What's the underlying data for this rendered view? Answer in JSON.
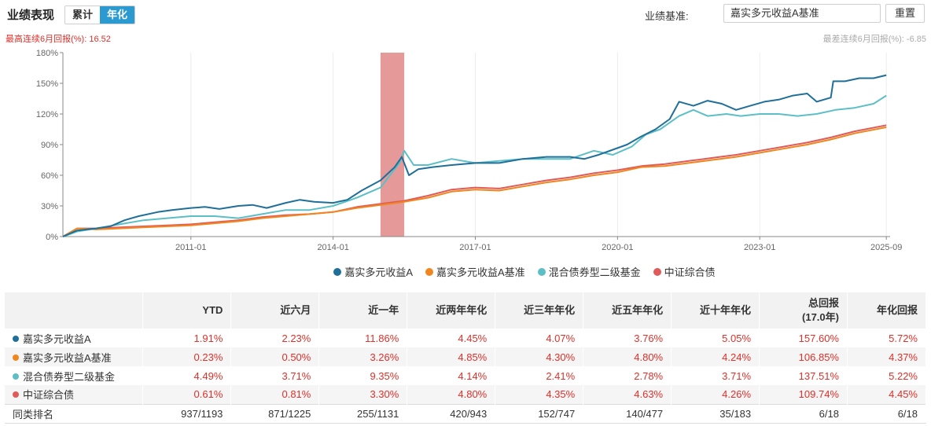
{
  "header": {
    "title": "业绩表现",
    "toggle_cumulative": "累计",
    "toggle_annualized": "年化",
    "benchmark_label": "业绩基准:",
    "benchmark_value": "嘉实多元收益A基准",
    "reset_label": "重置"
  },
  "notes": {
    "best": "最高连续6月回报(%): 16.52",
    "worst": "最差连续6月回报(%): -6.85"
  },
  "colors": {
    "fund": "#1f6f99",
    "benchmark": "#f0861d",
    "peer": "#5cbfc6",
    "bond_index": "#e05a5a",
    "highlight": "#e08080",
    "value_red": "#e0302a"
  },
  "chart_data": {
    "type": "line",
    "x_unit": "year",
    "xlim": [
      2008.3,
      2025.75
    ],
    "ylim": [
      0,
      180
    ],
    "yticks": [
      0,
      30,
      60,
      90,
      120,
      150,
      180
    ],
    "ytick_labels": [
      "0%",
      "30%",
      "60%",
      "90%",
      "120%",
      "150%",
      "180%"
    ],
    "xticks": [
      2011.0,
      2014.0,
      2017.0,
      2020.0,
      2023.0,
      2025.67
    ],
    "xtick_labels": [
      "2011-01",
      "2014-01",
      "2017-01",
      "2020-01",
      "2023-01",
      "2025-09"
    ],
    "highlight_range": [
      2015.0,
      2015.5
    ],
    "grid": "vertical",
    "series": [
      {
        "name": "嘉实多元收益A",
        "color": "#1f6f99",
        "x": [
          2008.3,
          2008.6,
          2009.0,
          2009.3,
          2009.6,
          2009.9,
          2010.3,
          2010.6,
          2011.0,
          2011.3,
          2011.6,
          2012.0,
          2012.3,
          2012.6,
          2013.0,
          2013.3,
          2013.6,
          2014.0,
          2014.3,
          2014.6,
          2015.0,
          2015.3,
          2015.45,
          2015.6,
          2015.8,
          2016.1,
          2016.5,
          2017.0,
          2017.5,
          2018.0,
          2018.5,
          2019.0,
          2019.3,
          2019.6,
          2019.9,
          2020.2,
          2020.5,
          2020.8,
          2021.1,
          2021.3,
          2021.6,
          2021.9,
          2022.2,
          2022.5,
          2022.8,
          2023.1,
          2023.4,
          2023.7,
          2024.0,
          2024.2,
          2024.5,
          2024.55,
          2024.8,
          2025.1,
          2025.4,
          2025.67
        ],
        "values": [
          0,
          6,
          8,
          10,
          16,
          20,
          24,
          26,
          28,
          29,
          27,
          30,
          31,
          28,
          33,
          36,
          34,
          33,
          36,
          45,
          55,
          68,
          78,
          60,
          66,
          68,
          70,
          72,
          72,
          76,
          78,
          78,
          76,
          80,
          85,
          90,
          98,
          105,
          115,
          132,
          128,
          133,
          130,
          124,
          128,
          132,
          134,
          138,
          140,
          132,
          136,
          152,
          152,
          155,
          155,
          158
        ]
      },
      {
        "name": "嘉实多元收益A基准",
        "color": "#f0861d",
        "x": [
          2008.3,
          2008.6,
          2009.0,
          2009.5,
          2010.0,
          2010.5,
          2011.0,
          2011.5,
          2012.0,
          2012.5,
          2013.0,
          2013.5,
          2014.0,
          2014.5,
          2015.0,
          2015.5,
          2016.0,
          2016.5,
          2017.0,
          2017.5,
          2018.0,
          2018.5,
          2019.0,
          2019.5,
          2020.0,
          2020.5,
          2021.0,
          2021.5,
          2022.0,
          2022.5,
          2023.0,
          2023.5,
          2024.0,
          2024.5,
          2025.0,
          2025.67
        ],
        "values": [
          0,
          8,
          7,
          8,
          9,
          10,
          11,
          13,
          15,
          18,
          20,
          22,
          24,
          28,
          31,
          34,
          38,
          44,
          46,
          45,
          49,
          53,
          56,
          60,
          63,
          68,
          69,
          72,
          75,
          78,
          82,
          86,
          90,
          95,
          101,
          107
        ]
      },
      {
        "name": "混合债券型二级基金",
        "color": "#5cbfc6",
        "x": [
          2008.3,
          2008.6,
          2009.0,
          2009.5,
          2010.0,
          2010.5,
          2011.0,
          2011.5,
          2012.0,
          2012.5,
          2013.0,
          2013.5,
          2014.0,
          2014.5,
          2015.0,
          2015.4,
          2015.5,
          2015.7,
          2016.0,
          2016.5,
          2017.0,
          2017.5,
          2018.0,
          2018.5,
          2019.0,
          2019.5,
          2019.9,
          2020.3,
          2020.6,
          2020.9,
          2021.3,
          2021.6,
          2021.9,
          2022.3,
          2022.6,
          2023.0,
          2023.4,
          2023.8,
          2024.2,
          2024.6,
          2025.0,
          2025.4,
          2025.67
        ],
        "values": [
          0,
          5,
          8,
          12,
          16,
          18,
          20,
          20,
          18,
          22,
          26,
          26,
          30,
          38,
          48,
          72,
          84,
          70,
          70,
          76,
          72,
          74,
          76,
          76,
          76,
          84,
          80,
          88,
          100,
          105,
          118,
          124,
          118,
          120,
          118,
          120,
          120,
          118,
          120,
          124,
          126,
          130,
          138
        ]
      },
      {
        "name": "中证综合债",
        "color": "#e05a5a",
        "x": [
          2008.3,
          2008.6,
          2009.0,
          2009.5,
          2010.0,
          2010.5,
          2011.0,
          2011.5,
          2012.0,
          2012.5,
          2013.0,
          2013.5,
          2014.0,
          2014.5,
          2015.0,
          2015.5,
          2016.0,
          2016.5,
          2017.0,
          2017.5,
          2018.0,
          2018.5,
          2019.0,
          2019.5,
          2020.0,
          2020.5,
          2021.0,
          2021.5,
          2022.0,
          2022.5,
          2023.0,
          2023.5,
          2024.0,
          2024.5,
          2025.0,
          2025.67
        ],
        "values": [
          0,
          8,
          8,
          9,
          10,
          11,
          12,
          14,
          16,
          19,
          21,
          22,
          24,
          29,
          32,
          35,
          40,
          46,
          48,
          47,
          51,
          55,
          58,
          62,
          65,
          69,
          71,
          74,
          77,
          80,
          84,
          88,
          92,
          97,
          103,
          109
        ]
      }
    ]
  },
  "table": {
    "headers": [
      "",
      "YTD",
      "近六月",
      "近一年",
      "近两年年化",
      "近三年年化",
      "近五年年化",
      "近十年年化",
      "总回报",
      "(17.0年)",
      "年化回报"
    ],
    "rows": [
      {
        "name": "嘉实多元收益A",
        "color": "#1f6f99",
        "values": [
          "1.91%",
          "2.23%",
          "11.86%",
          "4.45%",
          "4.07%",
          "3.76%",
          "5.05%",
          "157.60%",
          "5.72%"
        ]
      },
      {
        "name": "嘉实多元收益A基准",
        "color": "#f0861d",
        "values": [
          "0.23%",
          "0.50%",
          "3.26%",
          "4.85%",
          "4.30%",
          "4.80%",
          "4.24%",
          "106.85%",
          "4.37%"
        ]
      },
      {
        "name": "混合债券型二级基金",
        "color": "#5cbfc6",
        "values": [
          "4.49%",
          "3.71%",
          "9.35%",
          "4.14%",
          "2.41%",
          "2.78%",
          "3.71%",
          "137.51%",
          "5.22%"
        ]
      },
      {
        "name": "中证综合债",
        "color": "#e05a5a",
        "values": [
          "0.61%",
          "0.81%",
          "3.30%",
          "4.80%",
          "4.35%",
          "4.63%",
          "4.26%",
          "109.74%",
          "4.45%"
        ]
      }
    ],
    "rank": {
      "name": "同类排名",
      "values": [
        "937/1193",
        "871/1225",
        "255/1131",
        "420/943",
        "152/747",
        "140/477",
        "35/183",
        "6/18",
        "6/18"
      ]
    }
  }
}
